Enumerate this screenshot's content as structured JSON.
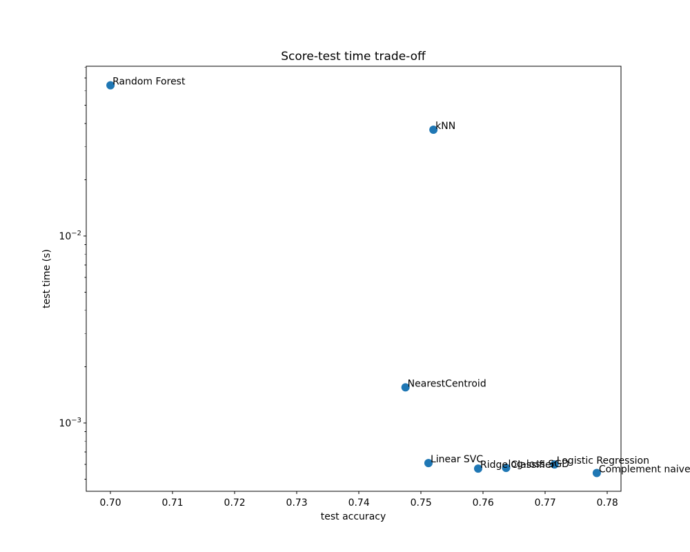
{
  "chart_data": {
    "type": "scatter",
    "title": "Score-test time trade-off",
    "xlabel": "test accuracy",
    "ylabel": "test time (s)",
    "xlim": [
      0.6961,
      0.7822
    ],
    "ylim": [
      0.000431,
      0.0809
    ],
    "x_scale": "linear",
    "y_scale": "log",
    "grid": false,
    "legend": "none",
    "x_ticks": [
      0.7,
      0.71,
      0.72,
      0.73,
      0.74,
      0.75,
      0.76,
      0.77,
      0.78
    ],
    "y_major_tick_exponents": [
      -3,
      -2
    ],
    "marker_color": "#1f77b4",
    "axis_color": "#000000",
    "text_color": "#000000",
    "points": [
      {
        "label": "Random Forest",
        "x": 0.7,
        "y": 0.064
      },
      {
        "label": "kNN",
        "x": 0.752,
        "y": 0.037
      },
      {
        "label": "NearestCentroid",
        "x": 0.7475,
        "y": 0.00155
      },
      {
        "label": "Linear SVC",
        "x": 0.7512,
        "y": 0.00061
      },
      {
        "label": "Ridge Classifier",
        "x": 0.7592,
        "y": 0.00057
      },
      {
        "label": "log-loss SGD",
        "x": 0.7637,
        "y": 0.000575
      },
      {
        "label": "Logistic Regression",
        "x": 0.7715,
        "y": 0.0006
      },
      {
        "label": "Complement naive",
        "x": 0.7783,
        "y": 0.00054
      }
    ]
  }
}
